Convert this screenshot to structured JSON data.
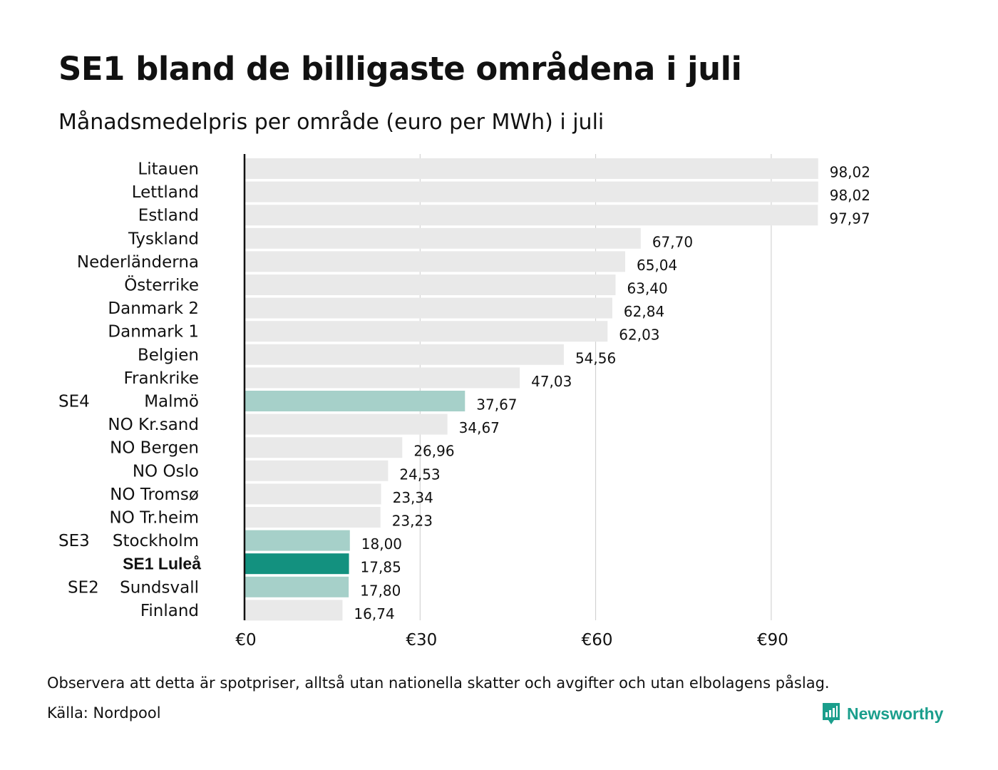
{
  "title": "SE1 bland de billigaste områdena i juli",
  "subtitle": "Månadsmedelpris per område (euro per MWh) i juli",
  "footnote": "Observera att detta är spotpriser, alltså utan nationella skatter och avgifter och utan elbolagens påslag.",
  "source": "Källa: Nordpool",
  "brand": {
    "name": "Newsworthy",
    "icon": "newsworthy-logo-icon",
    "color": "#1a9e8c"
  },
  "colors": {
    "default_bar": "#e9e9e9",
    "swedish_bar": "#a6d0c9",
    "highlight_bar": "#13917f",
    "gridline": "#cccccc",
    "axis": "#111111"
  },
  "chart_data": {
    "type": "bar",
    "orientation": "horizontal",
    "title": "SE1 bland de billigaste områdena i juli",
    "subtitle": "Månadsmedelpris per område (euro per MWh) i juli",
    "xlim": [
      0,
      100
    ],
    "xticks": [
      0,
      30,
      60,
      90
    ],
    "xtick_labels": [
      "€0",
      "€30",
      "€60",
      "€90"
    ],
    "grid": true,
    "bars": [
      {
        "code": "",
        "label": "Litauen",
        "value": 98.02,
        "value_label": "98,02",
        "group": "default"
      },
      {
        "code": "",
        "label": "Lettland",
        "value": 98.02,
        "value_label": "98,02",
        "group": "default"
      },
      {
        "code": "",
        "label": "Estland",
        "value": 97.97,
        "value_label": "97,97",
        "group": "default"
      },
      {
        "code": "",
        "label": "Tyskland",
        "value": 67.7,
        "value_label": "67,70",
        "group": "default"
      },
      {
        "code": "",
        "label": "Nederländerna",
        "value": 65.04,
        "value_label": "65,04",
        "group": "default"
      },
      {
        "code": "",
        "label": "Österrike",
        "value": 63.4,
        "value_label": "63,40",
        "group": "default"
      },
      {
        "code": "",
        "label": "Danmark  2",
        "value": 62.84,
        "value_label": "62,84",
        "group": "default"
      },
      {
        "code": "",
        "label": "Danmark  1",
        "value": 62.03,
        "value_label": "62,03",
        "group": "default"
      },
      {
        "code": "",
        "label": "Belgien",
        "value": 54.56,
        "value_label": "54,56",
        "group": "default"
      },
      {
        "code": "",
        "label": "Frankrike",
        "value": 47.03,
        "value_label": "47,03",
        "group": "default"
      },
      {
        "code": "SE4",
        "label": "Malmö",
        "value": 37.67,
        "value_label": "37,67",
        "group": "swedish"
      },
      {
        "code": "",
        "label": "NO Kr.sand",
        "value": 34.67,
        "value_label": "34,67",
        "group": "default"
      },
      {
        "code": "",
        "label": "NO Bergen",
        "value": 26.96,
        "value_label": "26,96",
        "group": "default"
      },
      {
        "code": "",
        "label": "NO Oslo",
        "value": 24.53,
        "value_label": "24,53",
        "group": "default"
      },
      {
        "code": "",
        "label": "NO Tromsø",
        "value": 23.34,
        "value_label": "23,34",
        "group": "default"
      },
      {
        "code": "",
        "label": "NO Tr.heim",
        "value": 23.23,
        "value_label": "23,23",
        "group": "default"
      },
      {
        "code": "SE3",
        "label": "Stockholm",
        "value": 18.0,
        "value_label": "18,00",
        "group": "swedish"
      },
      {
        "code": "",
        "label": "SE1 Luleå",
        "value": 17.85,
        "value_label": "17,85",
        "group": "highlight"
      },
      {
        "code": "SE2",
        "label": "Sundsvall",
        "value": 17.8,
        "value_label": "17,80",
        "group": "swedish"
      },
      {
        "code": "",
        "label": "Finland",
        "value": 16.74,
        "value_label": "16,74",
        "group": "default"
      }
    ]
  }
}
